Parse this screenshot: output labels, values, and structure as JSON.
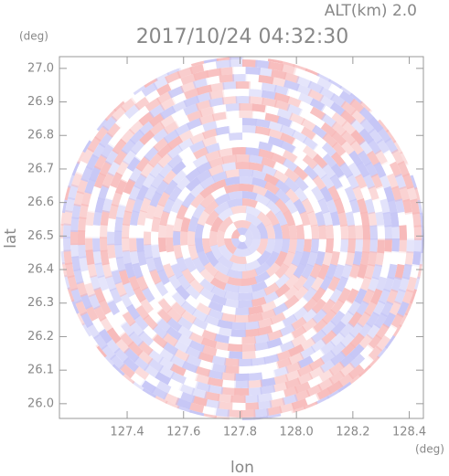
{
  "chart_data": {
    "type": "radar-ppi",
    "title": "2017/10/24 04:32:30",
    "subtitle": "ALT(km) 2.0",
    "x_label": "lon",
    "x_unit": "(deg)",
    "y_label": "lat",
    "y_unit": "(deg)",
    "xlim": [
      127.16,
      128.45
    ],
    "ylim": [
      25.956,
      27.035
    ],
    "xticks": [
      127.4,
      127.6,
      127.8,
      {
        "value": 128,
        "label": "128.0"
      },
      128.2,
      128.4
    ],
    "yticks": [
      {
        "value": 26,
        "label": "26.0"
      },
      26.1,
      26.2,
      26.3,
      26.4,
      26.5,
      26.6,
      26.7,
      26.8,
      26.9,
      {
        "value": 27,
        "label": "27.0"
      }
    ]
  }
}
